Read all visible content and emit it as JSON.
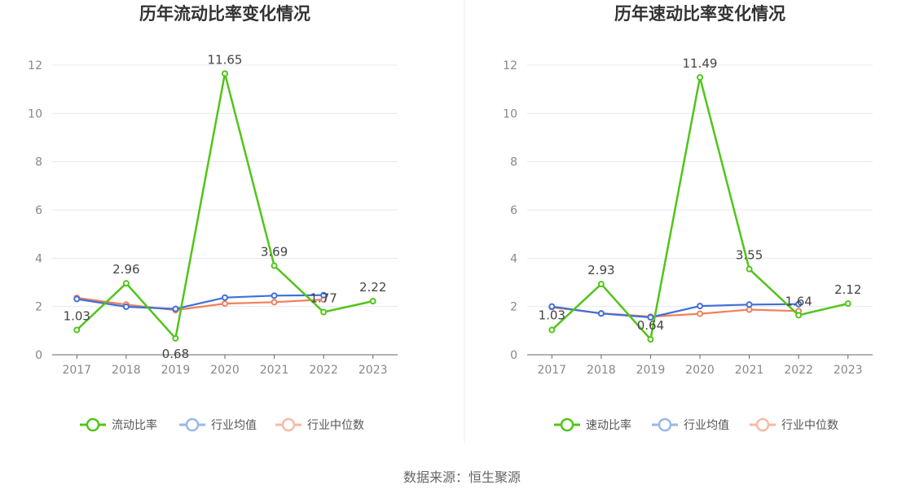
{
  "source": "数据来源：恒生聚源",
  "colors": {
    "main": "#52c41a",
    "avg": "#3f6fd8",
    "median": "#f0805a",
    "legend_avg": "#9ab6ee",
    "legend_median": "#f7b9a4"
  },
  "chart_data": [
    {
      "type": "line",
      "title": "历年流动比率变化情况",
      "categories": [
        "2017",
        "2018",
        "2019",
        "2020",
        "2021",
        "2022",
        "2023"
      ],
      "ylim": [
        0,
        12
      ],
      "yticks": [
        "0",
        "2",
        "4",
        "6",
        "8",
        "10",
        "12"
      ],
      "grid": true,
      "legend_position": "bottom",
      "series": [
        {
          "name": "流动比率",
          "values": [
            1.03,
            2.96,
            0.68,
            11.65,
            3.69,
            1.77,
            2.22
          ],
          "labels": [
            "1.03",
            "2.96",
            "0.68",
            "11.65",
            "3.69",
            "1.77",
            "2.22"
          ]
        },
        {
          "name": "行业均值",
          "values": [
            2.31,
            1.99,
            1.9,
            2.37,
            2.45,
            2.47,
            null
          ]
        },
        {
          "name": "行业中位数",
          "values": [
            2.36,
            2.08,
            1.85,
            2.12,
            2.18,
            2.29,
            null
          ]
        }
      ]
    },
    {
      "type": "line",
      "title": "历年速动比率变化情况",
      "categories": [
        "2017",
        "2018",
        "2019",
        "2020",
        "2021",
        "2022",
        "2023"
      ],
      "ylim": [
        0,
        12
      ],
      "yticks": [
        "0",
        "2",
        "4",
        "6",
        "8",
        "10",
        "12"
      ],
      "grid": true,
      "legend_position": "bottom",
      "series": [
        {
          "name": "速动比率",
          "values": [
            1.03,
            2.93,
            0.64,
            11.49,
            3.55,
            1.64,
            2.12
          ],
          "labels": [
            "1.03",
            "2.93",
            "0.64",
            "11.49",
            "3.55",
            "1.64",
            "2.12"
          ]
        },
        {
          "name": "行业均值",
          "values": [
            2.0,
            1.71,
            1.55,
            2.02,
            2.08,
            2.1,
            null
          ]
        },
        {
          "name": "行业中位数",
          "values": [
            1.97,
            1.72,
            1.58,
            1.7,
            1.87,
            1.81,
            null
          ]
        }
      ]
    }
  ]
}
